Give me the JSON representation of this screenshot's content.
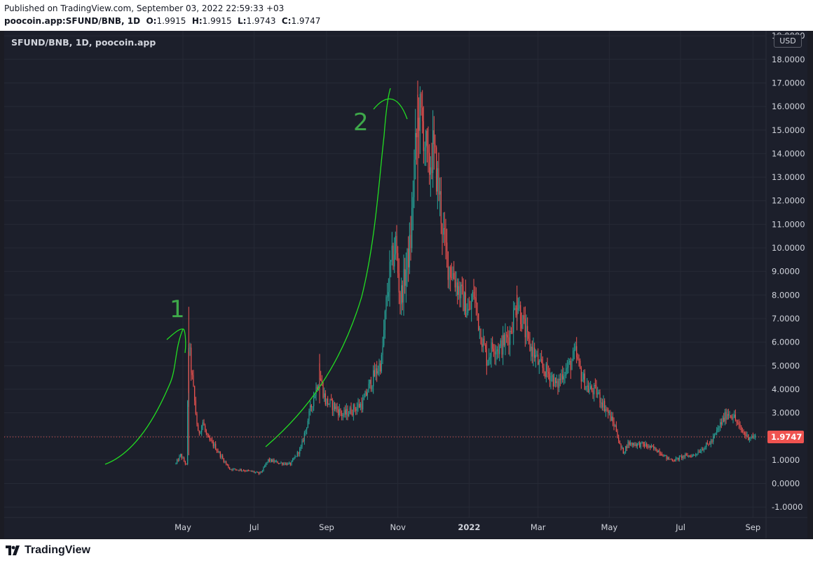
{
  "header": {
    "published": "Published on TradingView.com, September 03, 2022 22:59:33 +03",
    "symbol_line": "poocoin.app:SFUND/BNB, 1D",
    "open_label": "O:",
    "open": "1.9915",
    "high_label": "H:",
    "high": "1.9915",
    "low_label": "L:",
    "low": "1.9743",
    "close_label": "C:",
    "close": "1.9747"
  },
  "chart_title": "SFUND/BNB, 1D, poocoin.app",
  "currency": "USD",
  "last_price_label": "1.9747",
  "footer": {
    "brand": "TradingView"
  },
  "colors": {
    "up": "#26a69a",
    "down": "#ef5350",
    "annotation": "#22dd22",
    "annotation_text": "#3ea84a",
    "price_line": "#ef5350"
  },
  "chart_data": {
    "type": "candlestick",
    "title": "SFUND/BNB, 1D, poocoin.app",
    "ylim": [
      -1.5,
      19.2
    ],
    "y_ticks": [
      "-1.0000",
      "0.0000",
      "1.0000",
      "2.0000",
      "3.0000",
      "4.0000",
      "5.0000",
      "6.0000",
      "7.0000",
      "8.0000",
      "9.0000",
      "10.0000",
      "11.0000",
      "12.0000",
      "13.0000",
      "14.0000",
      "15.0000",
      "16.0000",
      "17.0000",
      "18.0000",
      "19.0000"
    ],
    "x_ticks": [
      "May",
      "Jul",
      "Sep",
      "Nov",
      "2022",
      "Mar",
      "May",
      "Jul",
      "Sep"
    ],
    "last_price": 1.9747,
    "annotations": [
      {
        "text": "1",
        "target": 6.6
      },
      {
        "text": "2",
        "target": 16.8
      }
    ],
    "close_path": [
      [
        "2021-04-25",
        0.85
      ],
      [
        "2021-04-29",
        1.2
      ],
      [
        "2021-05-04",
        0.78
      ],
      [
        "2021-05-06",
        5.9
      ],
      [
        "2021-05-09",
        4.4
      ],
      [
        "2021-05-12",
        3.0
      ],
      [
        "2021-05-14",
        2.1
      ],
      [
        "2021-05-18",
        2.6
      ],
      [
        "2021-05-22",
        1.9
      ],
      [
        "2021-05-28",
        1.6
      ],
      [
        "2021-06-04",
        1.05
      ],
      [
        "2021-06-10",
        0.62
      ],
      [
        "2021-06-20",
        0.58
      ],
      [
        "2021-06-30",
        0.5
      ],
      [
        "2021-07-05",
        0.42
      ],
      [
        "2021-07-08",
        0.55
      ],
      [
        "2021-07-13",
        1.0
      ],
      [
        "2021-07-22",
        0.88
      ],
      [
        "2021-08-01",
        0.82
      ],
      [
        "2021-08-10",
        1.5
      ],
      [
        "2021-08-20",
        3.5
      ],
      [
        "2021-08-26",
        4.6
      ],
      [
        "2021-08-31",
        3.5
      ],
      [
        "2021-09-07",
        3.3
      ],
      [
        "2021-09-15",
        2.9
      ],
      [
        "2021-09-25",
        3.2
      ],
      [
        "2021-10-02",
        3.4
      ],
      [
        "2021-10-08",
        4.2
      ],
      [
        "2021-10-14",
        4.8
      ],
      [
        "2021-10-18",
        5.2
      ],
      [
        "2021-10-22",
        7.6
      ],
      [
        "2021-10-25",
        8.9
      ],
      [
        "2021-10-30",
        10.2
      ],
      [
        "2021-11-03",
        7.8
      ],
      [
        "2021-11-06",
        8.5
      ],
      [
        "2021-11-12",
        10.3
      ],
      [
        "2021-11-15",
        13.5
      ],
      [
        "2021-11-19",
        15.8
      ],
      [
        "2021-11-23",
        15.0
      ],
      [
        "2021-11-27",
        13.2
      ],
      [
        "2021-12-01",
        14.2
      ],
      [
        "2021-12-06",
        12.5
      ],
      [
        "2021-12-10",
        10.5
      ],
      [
        "2021-12-14",
        9.3
      ],
      [
        "2021-12-19",
        8.8
      ],
      [
        "2021-12-25",
        8.0
      ],
      [
        "2022-01-01",
        7.2
      ],
      [
        "2022-01-05",
        8.1
      ],
      [
        "2022-01-10",
        6.6
      ],
      [
        "2022-01-16",
        5.3
      ],
      [
        "2022-01-22",
        5.9
      ],
      [
        "2022-01-27",
        5.7
      ],
      [
        "2022-02-05",
        6.4
      ],
      [
        "2022-02-11",
        7.8
      ],
      [
        "2022-02-16",
        6.8
      ],
      [
        "2022-02-21",
        5.9
      ],
      [
        "2022-02-25",
        5.6
      ],
      [
        "2022-03-02",
        5.0
      ],
      [
        "2022-03-12",
        4.6
      ],
      [
        "2022-03-17",
        4.1
      ],
      [
        "2022-03-22",
        4.7
      ],
      [
        "2022-03-28",
        5.0
      ],
      [
        "2022-04-02",
        5.5
      ],
      [
        "2022-04-07",
        4.6
      ],
      [
        "2022-04-13",
        4.0
      ],
      [
        "2022-04-20",
        3.9
      ],
      [
        "2022-04-30",
        3.0
      ],
      [
        "2022-05-07",
        2.3
      ],
      [
        "2022-05-10",
        1.6
      ],
      [
        "2022-05-13",
        1.35
      ],
      [
        "2022-05-17",
        1.7
      ],
      [
        "2022-05-30",
        1.65
      ],
      [
        "2022-06-12",
        1.4
      ],
      [
        "2022-06-20",
        1.05
      ],
      [
        "2022-06-26",
        1.0
      ],
      [
        "2022-07-03",
        1.15
      ],
      [
        "2022-07-12",
        1.2
      ],
      [
        "2022-07-20",
        1.5
      ],
      [
        "2022-07-28",
        1.8
      ],
      [
        "2022-08-04",
        2.5
      ],
      [
        "2022-08-10",
        3.0
      ],
      [
        "2022-08-15",
        2.9
      ],
      [
        "2022-08-21",
        2.3
      ],
      [
        "2022-08-27",
        2.0
      ],
      [
        "2022-09-03",
        1.97
      ]
    ]
  }
}
